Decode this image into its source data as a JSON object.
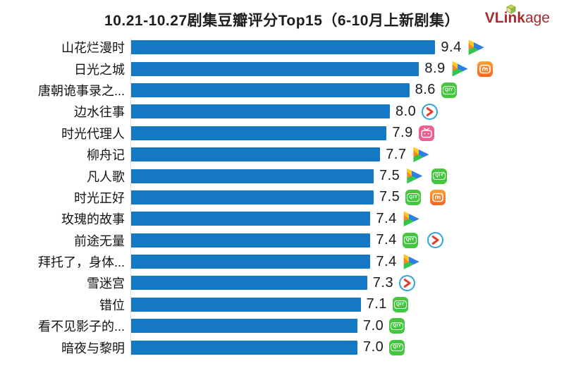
{
  "title": "10.21-10.27剧集豆瓣评分Top15（6-10月上新剧集）",
  "logo": {
    "brand_bold": "VLink",
    "brand_rest": "age",
    "color": "#ab2a2e",
    "cube_icon": "cube-icon"
  },
  "icons": {
    "iqiyi_glyph": "QIY",
    "platform_names": {
      "tencent-video": "腾讯视频",
      "iqiyi": "爱奇艺",
      "mango-tv": "芒果TV",
      "youku": "优酷",
      "bilibili": "哔哩哔哩"
    }
  },
  "chart_data": {
    "type": "bar",
    "orientation": "horizontal",
    "title": "10.21-10.27剧集豆瓣评分Top15（6-10月上新剧集）",
    "xlabel": "",
    "ylabel": "",
    "xlim": [
      0,
      10
    ],
    "grid": false,
    "legend": false,
    "bar_color": "#1478c4",
    "categories": [
      "山花烂漫时",
      "日光之城",
      "唐朝诡事录之...",
      "边水往事",
      "时光代理人",
      "柳舟记",
      "凡人歌",
      "时光正好",
      "玫瑰的故事",
      "前途无量",
      "拜托了，身体...",
      "雪迷宫",
      "错位",
      "看不见影子的...",
      "暗夜与黎明"
    ],
    "values": [
      9.4,
      8.9,
      8.6,
      8.0,
      7.9,
      7.7,
      7.5,
      7.5,
      7.4,
      7.4,
      7.4,
      7.3,
      7.1,
      7.0,
      7.0
    ],
    "rows": [
      {
        "label": "山花烂漫时",
        "value": "9.4",
        "platforms": [
          "tencent-video"
        ]
      },
      {
        "label": "日光之城",
        "value": "8.9",
        "platforms": [
          "tencent-video",
          "mango-tv"
        ]
      },
      {
        "label": "唐朝诡事录之...",
        "value": "8.6",
        "platforms": [
          "iqiyi"
        ]
      },
      {
        "label": "边水往事",
        "value": "8.0",
        "platforms": [
          "youku"
        ]
      },
      {
        "label": "时光代理人",
        "value": "7.9",
        "platforms": [
          "bilibili"
        ]
      },
      {
        "label": "柳舟记",
        "value": "7.7",
        "platforms": [
          "tencent-video"
        ]
      },
      {
        "label": "凡人歌",
        "value": "7.5",
        "platforms": [
          "tencent-video",
          "iqiyi"
        ]
      },
      {
        "label": "时光正好",
        "value": "7.5",
        "platforms": [
          "iqiyi",
          "mango-tv"
        ]
      },
      {
        "label": "玫瑰的故事",
        "value": "7.4",
        "platforms": [
          "tencent-video"
        ]
      },
      {
        "label": "前途无量",
        "value": "7.4",
        "platforms": [
          "iqiyi",
          "youku"
        ]
      },
      {
        "label": "拜托了，身体...",
        "value": "7.4",
        "platforms": [
          "tencent-video"
        ]
      },
      {
        "label": "雪迷宫",
        "value": "7.3",
        "platforms": [
          "youku"
        ]
      },
      {
        "label": "错位",
        "value": "7.1",
        "platforms": [
          "iqiyi"
        ]
      },
      {
        "label": "看不见影子的...",
        "value": "7.0",
        "platforms": [
          "iqiyi"
        ]
      },
      {
        "label": "暗夜与黎明",
        "value": "7.0",
        "platforms": [
          "iqiyi"
        ]
      }
    ]
  }
}
